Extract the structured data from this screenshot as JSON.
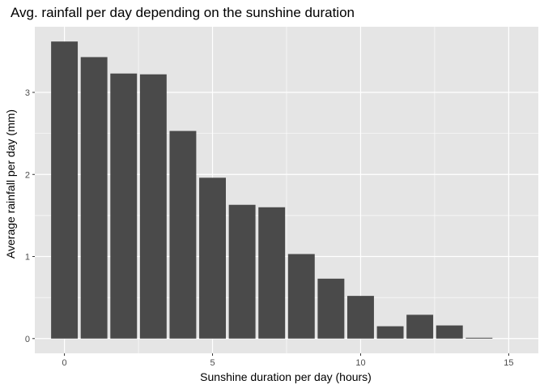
{
  "chart_data": {
    "type": "bar",
    "title": "Avg. rainfall per day depending on the sunshine duration",
    "xlabel": "Sunshine duration per day (hours)",
    "ylabel": "Average rainfall per day (mm)",
    "x": [
      0,
      1,
      2,
      3,
      4,
      5,
      6,
      7,
      8,
      9,
      10,
      11,
      12,
      13,
      14
    ],
    "values": [
      3.62,
      3.43,
      3.23,
      3.22,
      2.53,
      1.96,
      1.63,
      1.6,
      1.03,
      0.73,
      0.52,
      0.15,
      0.29,
      0.16,
      0.01
    ],
    "xlim": [
      -1.0,
      16.0
    ],
    "ylim": [
      -0.18,
      3.8
    ],
    "xticks": [
      0,
      5,
      10,
      15
    ],
    "yticks": [
      0,
      1,
      2,
      3
    ],
    "xtick_labels": [
      "0",
      "5",
      "10",
      "15"
    ],
    "ytick_labels": [
      "0",
      "1",
      "2",
      "3"
    ],
    "grid": true,
    "legend": "none",
    "colors": {
      "panel_background": "#e5e5e5",
      "grid": "#ffffff",
      "bar_fill": "#4a4a4a",
      "tick_text": "#4d4d4d"
    }
  }
}
